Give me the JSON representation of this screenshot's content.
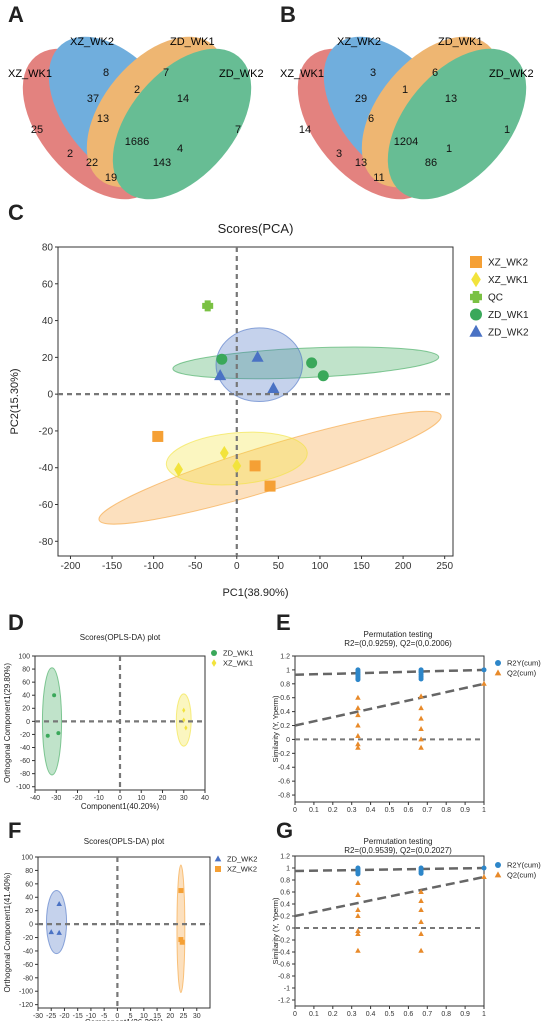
{
  "figure": {
    "panel_labels": {
      "A": "A",
      "B": "B",
      "C": "C",
      "D": "D",
      "E": "E",
      "F": "F",
      "G": "G"
    },
    "colors": {
      "XZ_WK1": "#d9534f",
      "XZ_WK2": "#3a8fd1",
      "ZD_WK1": "#e89a3c",
      "ZD_WK2": "#2ea56b",
      "qc": "#7ac143",
      "xz_wk2_scatter": "#f5a035",
      "xz_wk1_scatter": "#f2e33c",
      "zd_wk1_scatter": "#3aa85a",
      "zd_wk2_scatter": "#4a72c4",
      "r2y": "#2d86c9",
      "q2": "#e88a2a"
    }
  },
  "venn_A": {
    "sets": [
      "XZ_WK1",
      "XZ_WK2",
      "ZD_WK1",
      "ZD_WK2"
    ],
    "regions": [
      "8",
      "7",
      "37",
      "2",
      "14",
      "25",
      "13",
      "1686",
      "7",
      "2",
      "22",
      "143",
      "4",
      "19"
    ]
  },
  "venn_B": {
    "sets": [
      "XZ_WK1",
      "XZ_WK2",
      "ZD_WK1",
      "ZD_WK2"
    ],
    "regions": [
      "3",
      "6",
      "29",
      "1",
      "13",
      "14",
      "6",
      "1204",
      "1",
      "3",
      "13",
      "86",
      "1",
      "11"
    ]
  },
  "chart_data": [
    {
      "panel": "C",
      "type": "scatter",
      "title": "Scores(PCA)",
      "xlabel": "PC1(38.90%)",
      "ylabel": "PC2(15.30%)",
      "xlim": [
        -215,
        260
      ],
      "ylim": [
        -88,
        80
      ],
      "xticks": [
        "-200",
        "-150",
        "-100",
        "-50",
        "0",
        "50",
        "100",
        "150",
        "200",
        "250"
      ],
      "yticks": [
        "80",
        "60",
        "40",
        "20",
        "0",
        "-20",
        "-40",
        "-60",
        "-80"
      ],
      "legend_position": "right",
      "series": [
        {
          "name": "XZ_WK2",
          "marker": "square",
          "points": [
            [
              -95,
              -23
            ],
            [
              22,
              -39
            ],
            [
              40,
              -50
            ]
          ]
        },
        {
          "name": "XZ_WK1",
          "marker": "diamond",
          "points": [
            [
              -70,
              -41
            ],
            [
              -15,
              -32
            ],
            [
              0,
              -39
            ]
          ]
        },
        {
          "name": "QC",
          "marker": "cross",
          "points": [
            [
              -35,
              48
            ]
          ]
        },
        {
          "name": "ZD_WK1",
          "marker": "circle",
          "points": [
            [
              -18,
              19
            ],
            [
              90,
              17
            ],
            [
              104,
              10
            ]
          ]
        },
        {
          "name": "ZD_WK2",
          "marker": "triangle",
          "points": [
            [
              -20,
              10
            ],
            [
              25,
              20
            ],
            [
              44,
              3
            ]
          ]
        }
      ],
      "ellipses": [
        {
          "series": "XZ_WK2",
          "cx": 40,
          "cy": -40,
          "rx": 215,
          "ry": 12,
          "angle": -17
        },
        {
          "series": "XZ_WK1",
          "cx": 0,
          "cy": -35,
          "rx": 85,
          "ry": 14,
          "angle": -5
        },
        {
          "series": "ZD_WK1",
          "cx": 83,
          "cy": 17,
          "rx": 160,
          "ry": 8,
          "angle": -2.5
        },
        {
          "series": "ZD_WK2",
          "cx": 27,
          "cy": 16,
          "rx": 52,
          "ry": 20,
          "angle": 0
        }
      ]
    },
    {
      "panel": "D",
      "type": "scatter",
      "title": "Scores(OPLS-DA) plot",
      "xlabel": "Component1(40.20%)",
      "ylabel": "Orthogonal Component1(29.80%)",
      "xlim": [
        -40,
        40
      ],
      "ylim": [
        -105,
        100
      ],
      "xticks": [
        "-40",
        "-30",
        "-20",
        "-10",
        "0",
        "10",
        "20",
        "30",
        "40"
      ],
      "yticks": [
        "100",
        "80",
        "60",
        "40",
        "20",
        "0",
        "-20",
        "-40",
        "-60",
        "-80",
        "-100"
      ],
      "series": [
        {
          "name": "ZD_WK1",
          "marker": "circle",
          "points": [
            [
              -31,
              40
            ],
            [
              -29,
              -18
            ],
            [
              -34,
              -22
            ]
          ]
        },
        {
          "name": "XZ_WK1",
          "marker": "diamond",
          "points": [
            [
              30,
              17
            ],
            [
              31,
              -10
            ],
            [
              30,
              2
            ]
          ]
        }
      ],
      "ellipses": [
        {
          "series": "ZD_WK1",
          "cx": -32,
          "cy": 0,
          "rx": 4.5,
          "ry": 82
        },
        {
          "series": "XZ_WK1",
          "cx": 30,
          "cy": 2,
          "rx": 3.5,
          "ry": 40
        }
      ]
    },
    {
      "panel": "E",
      "type": "scatter",
      "title": "Permutation testing",
      "subtitle": "R2=(0,0.9259), Q2=(0,0.2006)",
      "xlabel": "",
      "ylabel": "Similarity (Y, Yperm)",
      "xlim": [
        0,
        1
      ],
      "ylim": [
        -0.9,
        1.2
      ],
      "xticks": [
        "0",
        "0.1",
        "0.2",
        "0.3",
        "0.4",
        "0.5",
        "0.6",
        "0.7",
        "0.8",
        "0.9",
        "1"
      ],
      "yticks": [
        "1.2",
        "1",
        "0.8",
        "0.6",
        "0.4",
        "0.2",
        "0",
        "-0.2",
        "-0.4",
        "-0.6",
        "-0.8"
      ],
      "series": [
        {
          "name": "R2Y(cum)",
          "marker": "circle",
          "points": [
            [
              0.333,
              1.0
            ],
            [
              0.333,
              0.98
            ],
            [
              0.333,
              0.96
            ],
            [
              0.333,
              0.94
            ],
            [
              0.333,
              0.92
            ],
            [
              0.333,
              0.9
            ],
            [
              0.333,
              0.88
            ],
            [
              0.333,
              0.86
            ],
            [
              0.667,
              1.0
            ],
            [
              0.667,
              0.98
            ],
            [
              0.667,
              0.96
            ],
            [
              0.667,
              0.93
            ],
            [
              0.667,
              0.9
            ],
            [
              0.667,
              0.87
            ],
            [
              1,
              1.0
            ]
          ],
          "fit": [
            [
              0,
              0.93
            ],
            [
              1,
              1.0
            ]
          ]
        },
        {
          "name": "Q2(cum)",
          "marker": "triangle",
          "points": [
            [
              0.333,
              0.6
            ],
            [
              0.333,
              0.45
            ],
            [
              0.333,
              0.35
            ],
            [
              0.333,
              0.2
            ],
            [
              0.333,
              0.05
            ],
            [
              0.333,
              -0.07
            ],
            [
              0.333,
              -0.12
            ],
            [
              0.667,
              0.62
            ],
            [
              0.667,
              0.45
            ],
            [
              0.667,
              0.3
            ],
            [
              0.667,
              0.15
            ],
            [
              0.667,
              0.0
            ],
            [
              0.667,
              -0.12
            ],
            [
              1,
              0.8
            ]
          ],
          "fit": [
            [
              0,
              0.2
            ],
            [
              1,
              0.8
            ]
          ]
        }
      ]
    },
    {
      "panel": "F",
      "type": "scatter",
      "title": "Scores(OPLS-DA) plot",
      "xlabel": "Component1(26.30%)",
      "ylabel": "Orthogonal Component1(41.40%)",
      "xlim": [
        -30,
        35
      ],
      "ylim": [
        -125,
        100
      ],
      "xticks": [
        "-30",
        "-25",
        "-20",
        "-15",
        "-10",
        "-5",
        "0",
        "5",
        "10",
        "15",
        "20",
        "25",
        "30"
      ],
      "yticks": [
        "100",
        "80",
        "60",
        "40",
        "20",
        "0",
        "-20",
        "-40",
        "-60",
        "-80",
        "-100",
        "-120"
      ],
      "series": [
        {
          "name": "ZD_WK2",
          "marker": "triangle",
          "points": [
            [
              -22,
              30
            ],
            [
              -25,
              -12
            ],
            [
              -22,
              -13
            ]
          ]
        },
        {
          "name": "XZ_WK2",
          "marker": "square",
          "points": [
            [
              24,
              50
            ],
            [
              24,
              -23
            ],
            [
              24.5,
              -27
            ]
          ]
        }
      ],
      "ellipses": [
        {
          "series": "ZD_WK2",
          "cx": -23,
          "cy": 3,
          "rx": 3.8,
          "ry": 47
        },
        {
          "series": "XZ_WK2",
          "cx": 24,
          "cy": -7,
          "rx": 1.5,
          "ry": 95
        }
      ]
    },
    {
      "panel": "G",
      "type": "scatter",
      "title": "Permutation testing",
      "subtitle": "R2=(0,0.9539), Q2=(0,0.2027)",
      "xlabel": "",
      "ylabel": "Similarity (Y, Yperm)",
      "xlim": [
        0,
        1
      ],
      "ylim": [
        -1.3,
        1.2
      ],
      "xticks": [
        "0",
        "0.1",
        "0.2",
        "0.3",
        "0.4",
        "0.5",
        "0.6",
        "0.7",
        "0.8",
        "0.9",
        "1"
      ],
      "yticks": [
        "1.2",
        "1",
        "0.8",
        "0.6",
        "0.4",
        "0.2",
        "0",
        "-0.2",
        "-0.4",
        "-0.6",
        "-0.8",
        "-1",
        "-1.2"
      ],
      "series": [
        {
          "name": "R2Y(cum)",
          "marker": "circle",
          "points": [
            [
              0.333,
              1.0
            ],
            [
              0.333,
              0.98
            ],
            [
              0.333,
              0.96
            ],
            [
              0.333,
              0.94
            ],
            [
              0.333,
              0.92
            ],
            [
              0.333,
              0.9
            ],
            [
              0.667,
              1.0
            ],
            [
              0.667,
              0.97
            ],
            [
              0.667,
              0.94
            ],
            [
              0.667,
              0.91
            ],
            [
              1,
              1.0
            ]
          ],
          "fit": [
            [
              0,
              0.95
            ],
            [
              1,
              1.0
            ]
          ]
        },
        {
          "name": "Q2(cum)",
          "marker": "triangle",
          "points": [
            [
              0.333,
              0.75
            ],
            [
              0.333,
              0.55
            ],
            [
              0.333,
              0.3
            ],
            [
              0.333,
              0.2
            ],
            [
              0.333,
              -0.05
            ],
            [
              0.333,
              -0.1
            ],
            [
              0.333,
              -0.38
            ],
            [
              0.667,
              0.6
            ],
            [
              0.667,
              0.45
            ],
            [
              0.667,
              0.3
            ],
            [
              0.667,
              0.1
            ],
            [
              0.667,
              -0.1
            ],
            [
              0.667,
              -0.38
            ],
            [
              1,
              0.85
            ]
          ],
          "fit": [
            [
              0,
              0.2
            ],
            [
              1,
              0.85
            ]
          ]
        }
      ]
    }
  ]
}
